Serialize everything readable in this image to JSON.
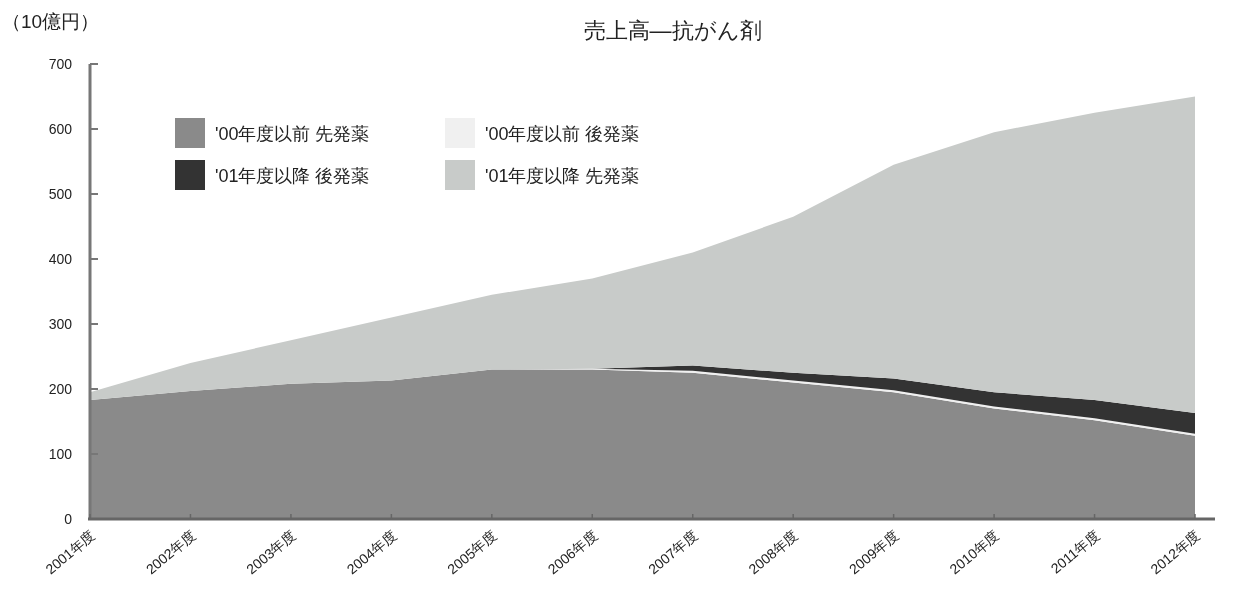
{
  "chart_data": {
    "type": "area",
    "stacked": true,
    "title": "売上高—抗がん剤",
    "ylabel": "（10億円）",
    "categories": [
      "2001年度",
      "2002年度",
      "2003年度",
      "2004年度",
      "2005年度",
      "2006年度",
      "2007年度",
      "2008年度",
      "2009年度",
      "2010年度",
      "2011年度",
      "2012年度"
    ],
    "series": [
      {
        "name": "'00年度以前 先発薬",
        "color": "#8a8a8a",
        "values": [
          183,
          197,
          208,
          213,
          230,
          230,
          225,
          210,
          195,
          170,
          152,
          128
        ]
      },
      {
        "name": "'00年度以前 後発薬",
        "color": "#f0f0f0",
        "values": [
          0,
          0,
          0,
          0,
          0,
          1,
          3,
          3,
          3,
          3,
          3,
          3
        ]
      },
      {
        "name": "'01年度以降 後発薬",
        "color": "#333333",
        "values": [
          0,
          0,
          0,
          0,
          0,
          0,
          8,
          12,
          18,
          22,
          28,
          32
        ]
      },
      {
        "name": "'01年度以降 先発薬",
        "color": "#c8cbc9",
        "values": [
          12,
          43,
          67,
          97,
          115,
          139,
          174,
          240,
          329,
          400,
          442,
          487
        ]
      }
    ],
    "ylim": [
      0,
      700
    ],
    "yticks": [
      0,
      100,
      200,
      300,
      400,
      500,
      600,
      700
    ],
    "legend": "top left"
  }
}
